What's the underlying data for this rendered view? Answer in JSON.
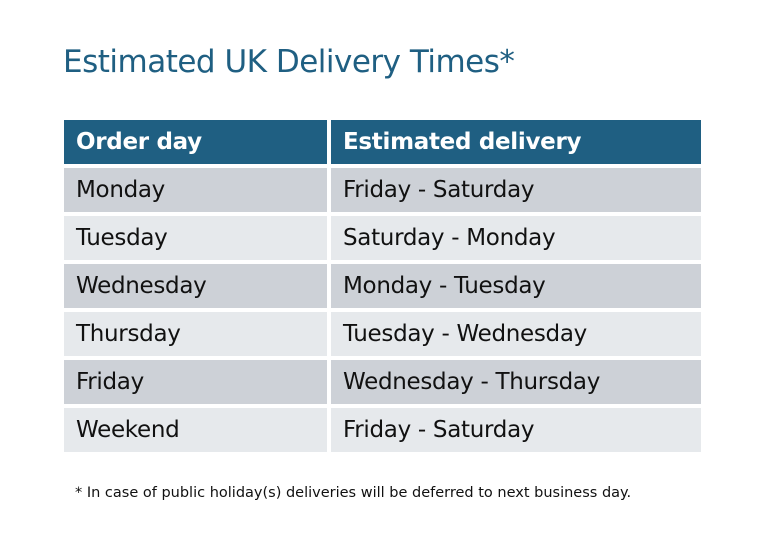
{
  "title": "Estimated UK Delivery Times*",
  "table": {
    "headers": [
      "Order day",
      "Estimated delivery"
    ],
    "rows": [
      [
        "Monday",
        "Friday - Saturday"
      ],
      [
        "Tuesday",
        "Saturday - Monday"
      ],
      [
        "Wednesday",
        "Monday - Tuesday"
      ],
      [
        "Thursday",
        "Tuesday - Wednesday"
      ],
      [
        "Friday",
        "Wednesday - Thursday"
      ],
      [
        "Weekend",
        "Friday - Saturday"
      ]
    ]
  },
  "footnote": "* In case of public holiday(s) deliveries will be deferred to next business day.",
  "colors": {
    "header": "#1f5f82",
    "row_odd": "#cdd1d7",
    "row_even": "#e6e9ec",
    "title": "#1f5f82"
  }
}
